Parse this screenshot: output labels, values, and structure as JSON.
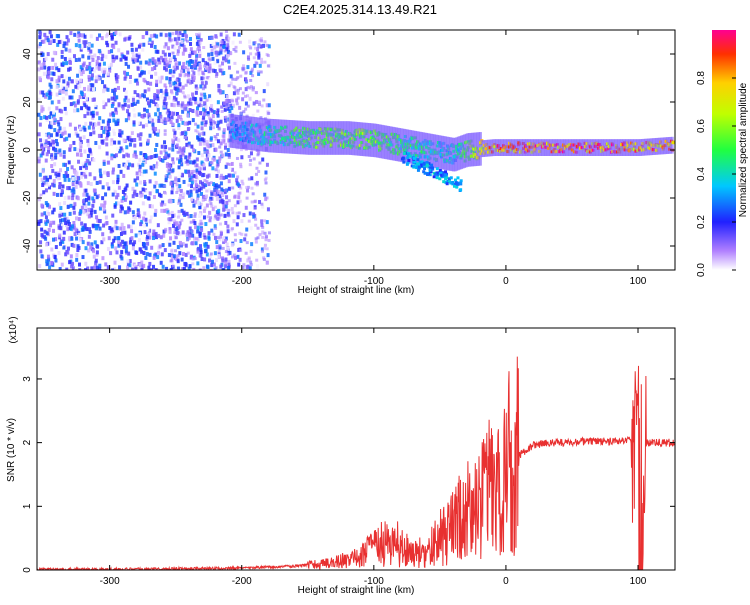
{
  "page_title": "C2E4.2025.314.13.49.R21",
  "colors": {
    "amplitude_low": "#7a22d6",
    "amplitude_high": "#ff0033",
    "snr_line": "#e83030"
  },
  "chart_data": [
    {
      "type": "heatmap",
      "title": "C2E4.2025.314.13.49.R21",
      "xlabel": "Height of straight line (km)",
      "ylabel": "Frequency (Hz)",
      "xlim": [
        -355,
        128
      ],
      "ylim": [
        -50,
        50
      ],
      "xticks": [
        -300,
        -200,
        -100,
        0,
        100
      ],
      "yticks": [
        -40,
        -20,
        0,
        20,
        40
      ],
      "grid": false,
      "colorbar": {
        "label": "Normalized spectral amplitude",
        "range": [
          0,
          1
        ],
        "ticks": [
          "0.0",
          "0.2",
          "0.4",
          "0.6",
          "0.8"
        ],
        "tick_values": [
          0.0,
          0.2,
          0.4,
          0.6,
          0.8
        ]
      },
      "ridge": {
        "description": "main Doppler ridge (frequency vs height)",
        "x": [
          -210,
          -180,
          -150,
          -120,
          -100,
          -80,
          -60,
          -40,
          -30,
          -10,
          0,
          20,
          40,
          60,
          80,
          100,
          125
        ],
        "frequency": [
          8,
          6,
          5,
          5,
          4,
          2,
          0,
          -2,
          0,
          1,
          1,
          1,
          1,
          1,
          1,
          1,
          2
        ],
        "amplitude": [
          0.3,
          0.45,
          0.55,
          0.6,
          0.6,
          0.5,
          0.45,
          0.4,
          0.6,
          0.9,
          0.9,
          0.95,
          0.95,
          0.95,
          0.95,
          0.9,
          0.85
        ]
      }
    },
    {
      "type": "line",
      "xlabel": "Height of straight line (km)",
      "ylabel": "SNR (10 * v/v)",
      "y_multiplier": "(x10⁴)",
      "xlim": [
        -355,
        128
      ],
      "ylim": [
        0,
        3.8
      ],
      "xticks": [
        -300,
        -200,
        -100,
        0,
        100
      ],
      "yticks": [
        0,
        1,
        2,
        3
      ],
      "grid": false,
      "series": [
        {
          "name": "SNR",
          "x": [
            -355,
            -300,
            -250,
            -200,
            -160,
            -130,
            -110,
            -100,
            -90,
            -80,
            -70,
            -60,
            -50,
            -40,
            -30,
            -20,
            -10,
            0,
            10,
            20,
            30,
            40,
            60,
            80,
            95,
            100,
            102,
            105,
            110,
            120,
            128
          ],
          "y": [
            0.01,
            0.01,
            0.02,
            0.03,
            0.06,
            0.12,
            0.2,
            0.35,
            0.45,
            0.4,
            0.25,
            0.3,
            0.5,
            0.7,
            0.9,
            1.1,
            1.3,
            1.6,
            1.8,
            1.95,
            2.0,
            2.0,
            2.02,
            2.02,
            2.05,
            2.05,
            0.15,
            2.0,
            2.0,
            2.0,
            2.0
          ]
        }
      ]
    }
  ]
}
